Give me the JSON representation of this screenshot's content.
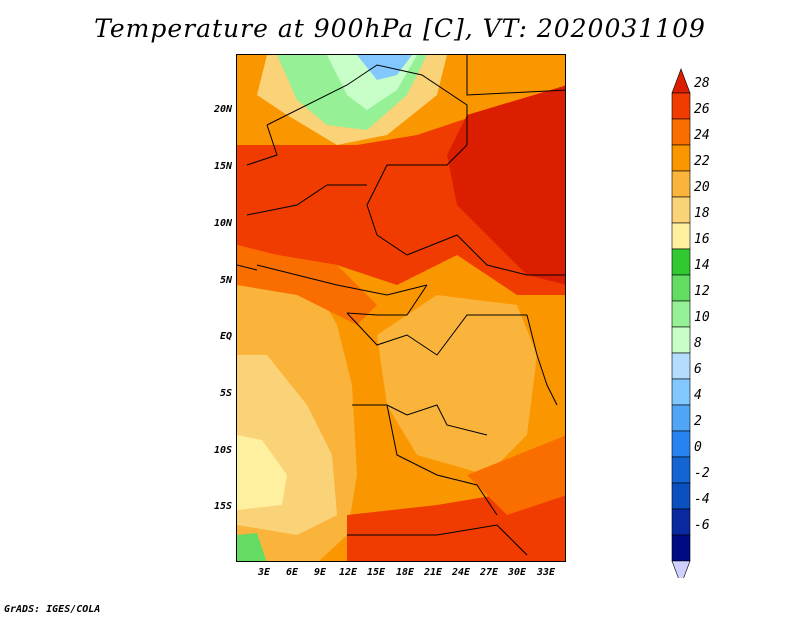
{
  "title": "Temperature at 900hPa [C], VT: 2020031109",
  "credit": "GrADS: IGES/COLA",
  "map": {
    "y_ticks": [
      "20N",
      "15N",
      "10N",
      "5N",
      "EQ",
      "5S",
      "10S",
      "15S"
    ],
    "x_ticks": [
      "3E",
      "6E",
      "9E",
      "12E",
      "15E",
      "18E",
      "21E",
      "24E",
      "27E",
      "30E",
      "33E"
    ]
  },
  "colorbar": {
    "labels": [
      "28",
      "26",
      "24",
      "22",
      "20",
      "18",
      "16",
      "14",
      "12",
      "10",
      "8",
      "6",
      "4",
      "2",
      "0",
      "-2",
      "-4",
      "-6"
    ],
    "colors": [
      "#dc1e00",
      "#f03c00",
      "#fa6e00",
      "#fa9600",
      "#fab43c",
      "#fad278",
      "#fff0a0",
      "#32c832",
      "#64dc64",
      "#96f096",
      "#c8ffc8",
      "#b4dcff",
      "#82c8ff",
      "#50a5f5",
      "#2882f0",
      "#1464d2",
      "#0a50be",
      "#0a28a0",
      "#000a82",
      "#d0d0ff"
    ]
  }
}
